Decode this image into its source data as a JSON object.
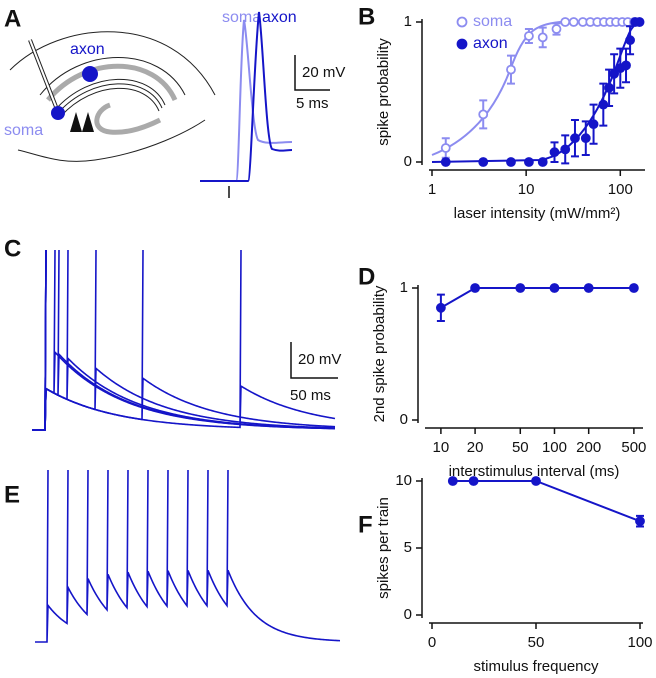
{
  "figure": {
    "panel_labels": [
      "A",
      "B",
      "C",
      "D",
      "E",
      "F"
    ],
    "panel_a": {
      "axon": "axon",
      "soma": "soma",
      "trace_soma": "soma",
      "trace_axon": "axon",
      "scale_v": "20 mV",
      "scale_t": "5 ms"
    },
    "panel_c": {
      "scale_v": "20 mV",
      "scale_t": "50 ms"
    }
  },
  "chart_data": [
    {
      "type": "scatter",
      "xlabel": "laser intensity (mW/mm²)",
      "ylabel": "spike probability",
      "xlog": true,
      "xlim": [
        1,
        170
      ],
      "xticks": [
        1,
        10,
        100
      ],
      "ylim": [
        0,
        1
      ],
      "yticks": [
        0,
        1
      ],
      "legend": "top-left",
      "series": [
        {
          "name": "soma",
          "color": "#8c8cf0",
          "filled": false,
          "x": [
            1.4,
            3.5,
            6.9,
            10.7,
            15,
            21,
            26,
            32,
            40,
            48,
            57,
            67,
            78,
            90,
            105,
            120,
            140,
            160
          ],
          "values": [
            0.1,
            0.34,
            0.66,
            0.9,
            0.89,
            0.95,
            1,
            1,
            1,
            1,
            1,
            1,
            1,
            1,
            1,
            1,
            1,
            1
          ],
          "errors": [
            0.07,
            0.1,
            0.1,
            0.05,
            0.07,
            0.04,
            0,
            0,
            0,
            0,
            0,
            0,
            0,
            0,
            0,
            0,
            0,
            0
          ]
        },
        {
          "name": "axon",
          "color": "#1515c8",
          "filled": true,
          "x": [
            1.4,
            3.5,
            6.9,
            10.7,
            15,
            20,
            26,
            33,
            43,
            52,
            66,
            76,
            86,
            100,
            115,
            127,
            144,
            160
          ],
          "values": [
            0,
            0,
            0,
            0,
            0,
            0.07,
            0.09,
            0.17,
            0.17,
            0.27,
            0.41,
            0.53,
            0.63,
            0.67,
            0.69,
            0.87,
            1,
            1
          ],
          "errors": [
            0,
            0,
            0,
            0,
            0,
            0.07,
            0.1,
            0.13,
            0.12,
            0.14,
            0.15,
            0.13,
            0.14,
            0.14,
            0.12,
            0.1,
            0,
            0
          ]
        }
      ]
    },
    {
      "type": "line",
      "ylabel": "2nd spike probability",
      "xlabel": "interstimulus interval (ms)",
      "xlog": true,
      "xlim": [
        7.7,
        566
      ],
      "xticks": [
        10,
        20,
        50,
        100,
        200,
        500
      ],
      "ylim": [
        0,
        1
      ],
      "yticks": [
        0,
        1
      ],
      "color": "#1515c8",
      "x": [
        10,
        20,
        50,
        100,
        200,
        500
      ],
      "values": [
        0.85,
        1,
        1,
        1,
        1,
        1
      ],
      "errors": [
        0.1,
        0,
        0,
        0,
        0,
        0
      ]
    },
    {
      "type": "line",
      "ylabel": "spikes per train",
      "xlabel": "stimulus frequency",
      "xlim": [
        0,
        100
      ],
      "xticks": [
        0,
        50,
        100
      ],
      "ylim": [
        0,
        10
      ],
      "yticks": [
        0,
        5,
        10
      ],
      "color": "#1515c8",
      "x": [
        10,
        20,
        50,
        100
      ],
      "values": [
        10,
        10,
        10,
        7
      ],
      "errors": [
        0,
        0,
        0,
        0.4
      ]
    }
  ]
}
